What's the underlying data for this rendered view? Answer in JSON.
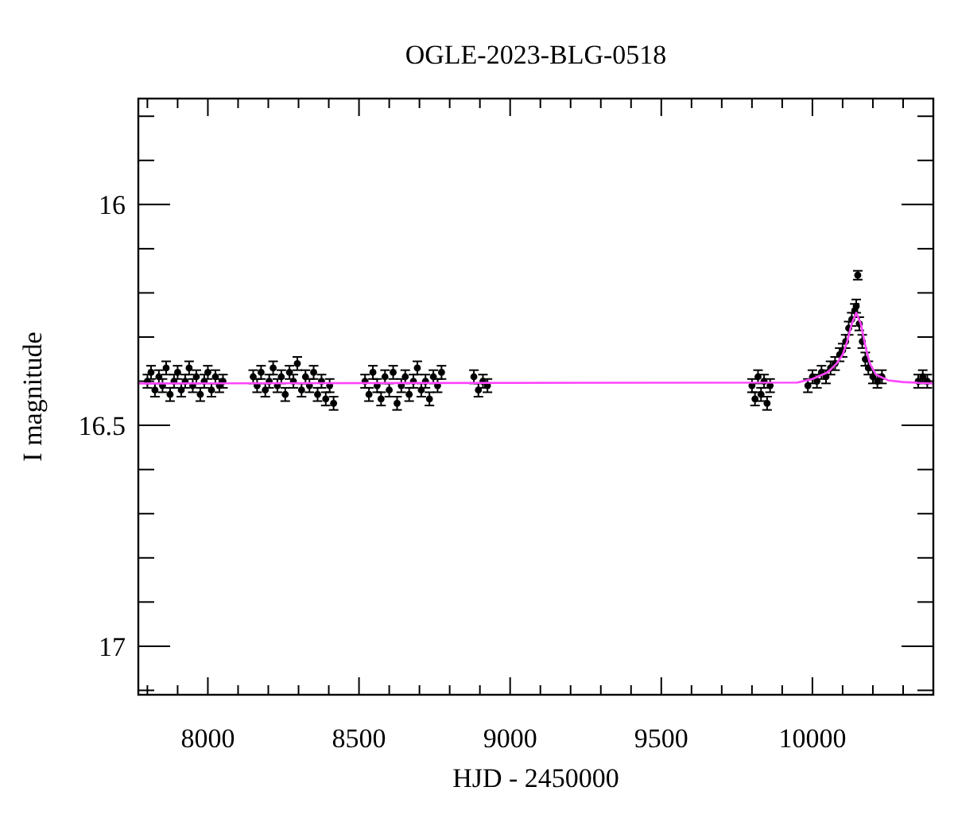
{
  "chart_data": {
    "type": "scatter",
    "title": "OGLE-2023-BLG-0518",
    "xlabel": "HJD - 2450000",
    "ylabel": "I magnitude",
    "xlim": [
      7770,
      10400
    ],
    "ylim": [
      17.11,
      15.76
    ],
    "xticks": [
      {
        "value": 7800,
        "label": null
      },
      {
        "value": 7900,
        "label": null
      },
      8000,
      {
        "value": 8100,
        "label": null
      },
      {
        "value": 8200,
        "label": null
      },
      {
        "value": 8300,
        "label": null
      },
      {
        "value": 8400,
        "label": null
      },
      8500,
      {
        "value": 8600,
        "label": null
      },
      {
        "value": 8700,
        "label": null
      },
      {
        "value": 8800,
        "label": null
      },
      {
        "value": 8900,
        "label": null
      },
      9000,
      {
        "value": 9100,
        "label": null
      },
      {
        "value": 9200,
        "label": null
      },
      {
        "value": 9300,
        "label": null
      },
      {
        "value": 9400,
        "label": null
      },
      9500,
      {
        "value": 9600,
        "label": null
      },
      {
        "value": 9700,
        "label": null
      },
      {
        "value": 9800,
        "label": null
      },
      {
        "value": 9900,
        "label": null
      },
      10000,
      {
        "value": 10100,
        "label": null
      },
      {
        "value": 10200,
        "label": null
      },
      {
        "value": 10300,
        "label": null
      }
    ],
    "yticks": [
      {
        "value": 15.8,
        "label": null
      },
      {
        "value": 15.9,
        "label": null
      },
      16,
      {
        "value": 16.1,
        "label": null
      },
      {
        "value": 16.2,
        "label": null
      },
      {
        "value": 16.3,
        "label": null
      },
      {
        "value": 16.4,
        "label": null
      },
      16.5,
      {
        "value": 16.6,
        "label": null
      },
      {
        "value": 16.7,
        "label": null
      },
      {
        "value": 16.8,
        "label": null
      },
      {
        "value": 16.9,
        "label": null
      },
      17,
      {
        "value": 17.1,
        "label": null
      }
    ],
    "marker": "circle",
    "series": [
      {
        "color": "#000000",
        "x": [
          7800,
          7812,
          7825,
          7838,
          7850,
          7862,
          7875,
          7888,
          7900,
          7912,
          7925,
          7938,
          7950,
          7962,
          7975,
          7988,
          8000,
          8012,
          8025,
          8038,
          8050,
          8150,
          8163,
          8176,
          8190,
          8203,
          8216,
          8230,
          8243,
          8256,
          8270,
          8283,
          8296,
          8310,
          8323,
          8336,
          8350,
          8363,
          8376,
          8390,
          8403,
          8416,
          8520,
          8533,
          8546,
          8560,
          8573,
          8586,
          8600,
          8613,
          8626,
          8640,
          8653,
          8666,
          8680,
          8693,
          8706,
          8720,
          8733,
          8746,
          8760,
          8773,
          8880,
          8895,
          8910,
          8925,
          9800,
          9810,
          9820,
          9830,
          9840,
          9850,
          9860,
          9985,
          10000,
          10015,
          10030,
          10045,
          10060,
          10075,
          10090,
          10100,
          10110,
          10120,
          10130,
          10140,
          10145,
          10150,
          10155,
          10165,
          10175,
          10185,
          10200,
          10215,
          10230,
          10350,
          10365,
          10380
        ],
        "values": [
          16.4,
          16.38,
          16.42,
          16.39,
          16.41,
          16.37,
          16.43,
          16.4,
          16.38,
          16.42,
          16.4,
          16.37,
          16.41,
          16.39,
          16.43,
          16.4,
          16.38,
          16.42,
          16.39,
          16.41,
          16.4,
          16.39,
          16.41,
          16.38,
          16.42,
          16.4,
          16.37,
          16.41,
          16.39,
          16.43,
          16.38,
          16.4,
          16.36,
          16.42,
          16.39,
          16.41,
          16.38,
          16.43,
          16.4,
          16.44,
          16.41,
          16.45,
          16.4,
          16.43,
          16.38,
          16.41,
          16.44,
          16.39,
          16.42,
          16.38,
          16.45,
          16.41,
          16.39,
          16.43,
          16.4,
          16.37,
          16.42,
          16.4,
          16.44,
          16.39,
          16.41,
          16.38,
          16.39,
          16.42,
          16.4,
          16.41,
          16.41,
          16.44,
          16.39,
          16.43,
          16.4,
          16.45,
          16.41,
          16.41,
          16.39,
          16.4,
          16.38,
          16.39,
          16.37,
          16.36,
          16.34,
          16.33,
          16.31,
          16.28,
          16.26,
          16.24,
          16.23,
          16.16,
          16.27,
          16.31,
          16.35,
          16.37,
          16.39,
          16.4,
          16.39,
          16.4,
          16.39,
          16.4
        ],
        "errors": [
          0.015,
          0.015,
          0.015,
          0.015,
          0.015,
          0.015,
          0.015,
          0.015,
          0.015,
          0.015,
          0.015,
          0.015,
          0.015,
          0.015,
          0.015,
          0.015,
          0.015,
          0.015,
          0.015,
          0.015,
          0.015,
          0.015,
          0.015,
          0.015,
          0.015,
          0.015,
          0.015,
          0.015,
          0.015,
          0.015,
          0.015,
          0.015,
          0.015,
          0.015,
          0.015,
          0.015,
          0.015,
          0.015,
          0.015,
          0.015,
          0.015,
          0.015,
          0.015,
          0.015,
          0.015,
          0.015,
          0.015,
          0.015,
          0.015,
          0.015,
          0.015,
          0.015,
          0.015,
          0.015,
          0.015,
          0.015,
          0.015,
          0.015,
          0.015,
          0.015,
          0.015,
          0.015,
          0.015,
          0.015,
          0.015,
          0.015,
          0.015,
          0.015,
          0.015,
          0.015,
          0.015,
          0.015,
          0.015,
          0.015,
          0.015,
          0.015,
          0.015,
          0.015,
          0.015,
          0.015,
          0.015,
          0.015,
          0.015,
          0.015,
          0.015,
          0.015,
          0.015,
          0.01,
          0.015,
          0.015,
          0.015,
          0.015,
          0.015,
          0.015,
          0.015,
          0.015,
          0.015,
          0.015
        ]
      },
      {
        "type": "line",
        "color": "#ff44ff",
        "marker": "none",
        "x": [
          7770,
          9950,
          10000,
          10050,
          10080,
          10100,
          10115,
          10130,
          10145,
          10160,
          10175,
          10190,
          10210,
          10250,
          10300,
          10400
        ],
        "values": [
          16.405,
          16.403,
          16.395,
          16.38,
          16.36,
          16.34,
          16.31,
          16.27,
          16.245,
          16.27,
          16.32,
          16.36,
          16.385,
          16.398,
          16.402,
          16.405
        ]
      }
    ]
  }
}
